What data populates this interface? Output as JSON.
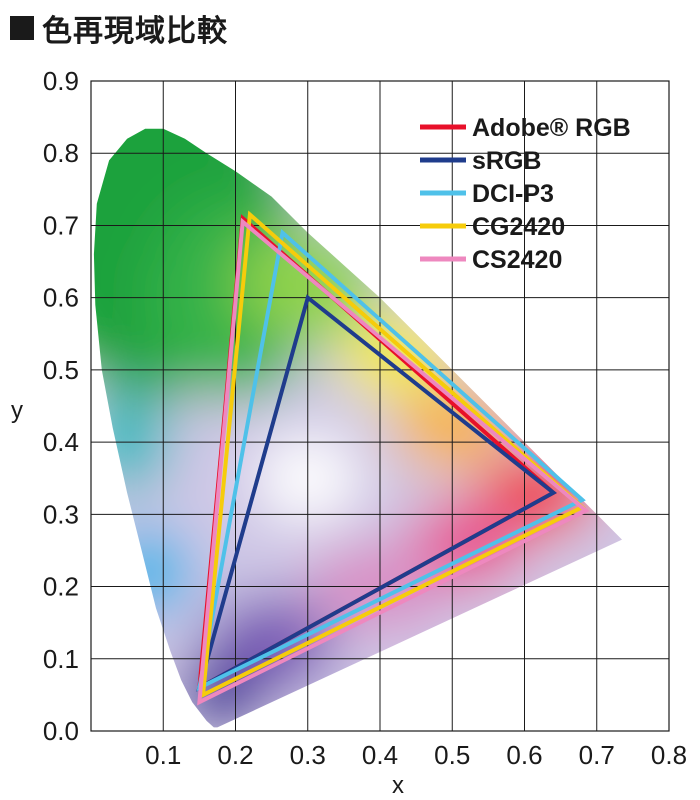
{
  "title": "色再現域比較",
  "chart_data": {
    "type": "scatter",
    "title": "色再現域比較",
    "xlabel": "x",
    "ylabel": "y",
    "xlim": [
      0.0,
      0.8
    ],
    "ylim": [
      0.0,
      0.9
    ],
    "x_ticks": [
      "0.1",
      "0.2",
      "0.3",
      "0.4",
      "0.5",
      "0.6",
      "0.7",
      "0.8"
    ],
    "y_ticks": [
      "0.0",
      "0.1",
      "0.2",
      "0.3",
      "0.4",
      "0.5",
      "0.6",
      "0.7",
      "0.8",
      "0.9"
    ],
    "grid": true,
    "legend_position": "top-right",
    "spectral_locus": [
      [
        0.175,
        0.005
      ],
      [
        0.17,
        0.005
      ],
      [
        0.16,
        0.014
      ],
      [
        0.14,
        0.04
      ],
      [
        0.125,
        0.07
      ],
      [
        0.11,
        0.11
      ],
      [
        0.09,
        0.17
      ],
      [
        0.07,
        0.25
      ],
      [
        0.05,
        0.33
      ],
      [
        0.03,
        0.42
      ],
      [
        0.015,
        0.5
      ],
      [
        0.006,
        0.59
      ],
      [
        0.004,
        0.66
      ],
      [
        0.008,
        0.73
      ],
      [
        0.025,
        0.79
      ],
      [
        0.05,
        0.82
      ],
      [
        0.075,
        0.834
      ],
      [
        0.1,
        0.834
      ],
      [
        0.13,
        0.82
      ],
      [
        0.16,
        0.8
      ],
      [
        0.2,
        0.775
      ],
      [
        0.25,
        0.74
      ],
      [
        0.3,
        0.69
      ],
      [
        0.35,
        0.645
      ],
      [
        0.4,
        0.6
      ],
      [
        0.45,
        0.55
      ],
      [
        0.5,
        0.5
      ],
      [
        0.55,
        0.45
      ],
      [
        0.6,
        0.4
      ],
      [
        0.65,
        0.35
      ],
      [
        0.7,
        0.3
      ],
      [
        0.735,
        0.265
      ]
    ],
    "series": [
      {
        "name": "Adobe® RGB",
        "color": "#e8102a",
        "points": [
          [
            0.64,
            0.33
          ],
          [
            0.21,
            0.71
          ],
          [
            0.15,
            0.06
          ]
        ]
      },
      {
        "name": "sRGB",
        "color": "#1f3c8c",
        "points": [
          [
            0.64,
            0.33
          ],
          [
            0.3,
            0.6
          ],
          [
            0.15,
            0.06
          ]
        ]
      },
      {
        "name": "DCI-P3",
        "color": "#4fc1e9",
        "points": [
          [
            0.68,
            0.32
          ],
          [
            0.265,
            0.69
          ],
          [
            0.15,
            0.06
          ]
        ]
      },
      {
        "name": "CG2420",
        "color": "#f6cc0b",
        "points": [
          [
            0.68,
            0.31
          ],
          [
            0.22,
            0.715
          ],
          [
            0.155,
            0.05
          ]
        ]
      },
      {
        "name": "CS2420",
        "color": "#ee88bf",
        "points": [
          [
            0.685,
            0.305
          ],
          [
            0.21,
            0.705
          ],
          [
            0.15,
            0.04
          ]
        ]
      }
    ]
  }
}
